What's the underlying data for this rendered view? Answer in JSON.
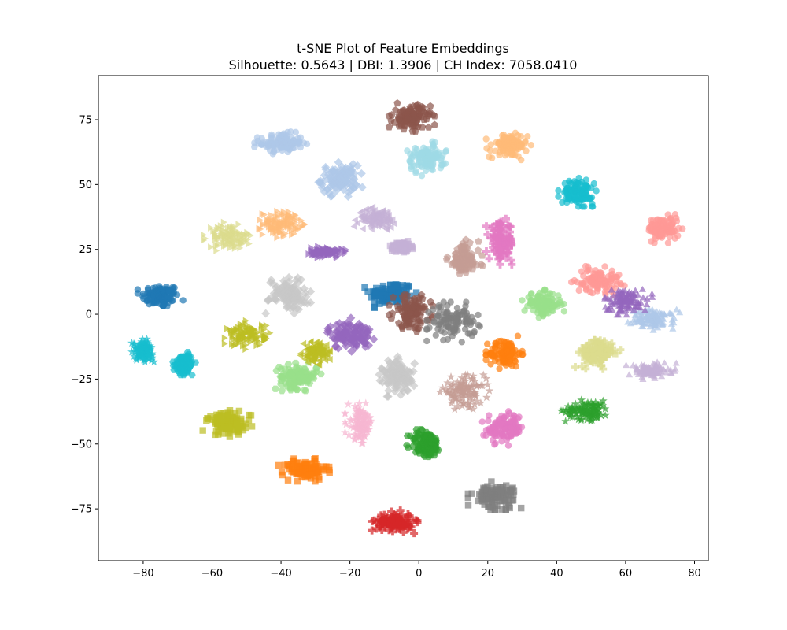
{
  "chart_data": {
    "type": "scatter",
    "title": "t-SNE Plot of Feature Embeddings",
    "subtitle": "Silhouette: 0.5643 | DBI: 1.3906 | CH Index: 7058.0410",
    "xlabel": "",
    "ylabel": "",
    "xlim": [
      -93,
      84
    ],
    "ylim": [
      -95,
      92
    ],
    "xticks": [
      -80,
      -60,
      -40,
      -20,
      0,
      20,
      40,
      60,
      80
    ],
    "yticks": [
      -75,
      -50,
      -25,
      0,
      25,
      50,
      75
    ],
    "xtick_labels": [
      "−80",
      "−60",
      "−40",
      "−20",
      "0",
      "20",
      "40",
      "60",
      "80"
    ],
    "ytick_labels": [
      "−75",
      "−50",
      "−25",
      "0",
      "25",
      "50",
      "75"
    ],
    "grid": false,
    "legend": "none",
    "marker_alpha": 0.7,
    "clusters": [
      {
        "cx": -75,
        "cy": 7,
        "rx": 6,
        "ry": 5,
        "color": "#1f77b4",
        "marker": "circle"
      },
      {
        "cx": -8,
        "cy": 8,
        "rx": 7,
        "ry": 5,
        "color": "#1f77b4",
        "marker": "square"
      },
      {
        "cx": -40,
        "cy": 66,
        "rx": 7,
        "ry": 4,
        "color": "#aec7e8",
        "marker": "circle"
      },
      {
        "cx": -23,
        "cy": 52,
        "rx": 6,
        "ry": 6,
        "color": "#aec7e8",
        "marker": "diamond"
      },
      {
        "cx": 68,
        "cy": -2,
        "rx": 7,
        "ry": 4,
        "color": "#aec7e8",
        "marker": "triangle"
      },
      {
        "cx": -40,
        "cy": 35,
        "rx": 6,
        "ry": 5,
        "color": "#ffbb78",
        "marker": "triangle-right"
      },
      {
        "cx": 26,
        "cy": 65,
        "rx": 6,
        "ry": 5,
        "color": "#ffbb78",
        "marker": "circle"
      },
      {
        "cx": -33,
        "cy": -60,
        "rx": 7,
        "ry": 4,
        "color": "#ff7f0e",
        "marker": "square"
      },
      {
        "cx": 25,
        "cy": -15,
        "rx": 5,
        "ry": 6,
        "color": "#ff7f0e",
        "marker": "circle"
      },
      {
        "cx": 2,
        "cy": -50,
        "rx": 5,
        "ry": 6,
        "color": "#2ca02c",
        "marker": "hexagon"
      },
      {
        "cx": 49,
        "cy": -37,
        "rx": 7,
        "ry": 4,
        "color": "#2ca02c",
        "marker": "star"
      },
      {
        "cx": -35,
        "cy": -24,
        "rx": 6,
        "ry": 5,
        "color": "#98df8a",
        "marker": "hexagon"
      },
      {
        "cx": 36,
        "cy": 4,
        "rx": 6,
        "ry": 5,
        "color": "#98df8a",
        "marker": "circle"
      },
      {
        "cx": -7,
        "cy": -80,
        "rx": 6,
        "ry": 4,
        "color": "#d62728",
        "marker": "plus"
      },
      {
        "cx": 71,
        "cy": 33,
        "rx": 5,
        "ry": 5,
        "color": "#ff9896",
        "marker": "circle"
      },
      {
        "cx": 52,
        "cy": 13,
        "rx": 7,
        "ry": 5,
        "color": "#ff9896",
        "marker": "circle"
      },
      {
        "cx": -20,
        "cy": -8,
        "rx": 7,
        "ry": 6,
        "color": "#9467bd",
        "marker": "diamond"
      },
      {
        "cx": -27,
        "cy": 24,
        "rx": 5,
        "ry": 2,
        "color": "#9467bd",
        "marker": "triangle-right"
      },
      {
        "cx": 60,
        "cy": 5,
        "rx": 7,
        "ry": 5,
        "color": "#9467bd",
        "marker": "triangle"
      },
      {
        "cx": -12,
        "cy": 37,
        "rx": 6,
        "ry": 4,
        "color": "#c5b0d5",
        "marker": "triangle-left"
      },
      {
        "cx": -5,
        "cy": 26,
        "rx": 3,
        "ry": 2,
        "color": "#c5b0d5",
        "marker": "square"
      },
      {
        "cx": 67,
        "cy": -22,
        "rx": 7,
        "ry": 3,
        "color": "#c5b0d5",
        "marker": "triangle"
      },
      {
        "cx": -2,
        "cy": 76,
        "rx": 6,
        "ry": 5,
        "color": "#8c564b",
        "marker": "pentagon"
      },
      {
        "cx": -2,
        "cy": 1,
        "rx": 6,
        "ry": 7,
        "color": "#8c564b",
        "marker": "pentagon"
      },
      {
        "cx": 13,
        "cy": 21,
        "rx": 5,
        "ry": 7,
        "color": "#c49c94",
        "marker": "pentagon"
      },
      {
        "cx": 13,
        "cy": -30,
        "rx": 7,
        "ry": 6,
        "color": "#c49c94",
        "marker": "star"
      },
      {
        "cx": 24,
        "cy": 28,
        "rx": 4,
        "ry": 8,
        "color": "#e377c2",
        "marker": "plus"
      },
      {
        "cx": 25,
        "cy": -44,
        "rx": 6,
        "ry": 6,
        "color": "#e377c2",
        "marker": "circle"
      },
      {
        "cx": -17,
        "cy": -42,
        "rx": 4,
        "ry": 7,
        "color": "#f7b6d2",
        "marker": "star"
      },
      {
        "cx": 10,
        "cy": -3,
        "rx": 7,
        "ry": 7,
        "color": "#7f7f7f",
        "marker": "circle"
      },
      {
        "cx": 22,
        "cy": -70,
        "rx": 7,
        "ry": 5,
        "color": "#7f7f7f",
        "marker": "square"
      },
      {
        "cx": -38,
        "cy": 8,
        "rx": 6,
        "ry": 7,
        "color": "#c7c7c7",
        "marker": "diamond"
      },
      {
        "cx": -6,
        "cy": -24,
        "rx": 5,
        "ry": 7,
        "color": "#c7c7c7",
        "marker": "diamond"
      },
      {
        "cx": -50,
        "cy": -8,
        "rx": 6,
        "ry": 5,
        "color": "#bcbd22",
        "marker": "triangle-right"
      },
      {
        "cx": -55,
        "cy": -42,
        "rx": 7,
        "ry": 5,
        "color": "#bcbd22",
        "marker": "square"
      },
      {
        "cx": -30,
        "cy": -15,
        "rx": 4,
        "ry": 4,
        "color": "#bcbd22",
        "marker": "triangle-left"
      },
      {
        "cx": -55,
        "cy": 30,
        "rx": 7,
        "ry": 5,
        "color": "#dbdb8d",
        "marker": "triangle-right"
      },
      {
        "cx": 52,
        "cy": -15,
        "rx": 6,
        "ry": 6,
        "color": "#dbdb8d",
        "marker": "plus"
      },
      {
        "cx": -80,
        "cy": -14,
        "rx": 3,
        "ry": 4,
        "color": "#17becf",
        "marker": "star"
      },
      {
        "cx": -68,
        "cy": -19,
        "rx": 3,
        "ry": 4,
        "color": "#17becf",
        "marker": "hexagon"
      },
      {
        "cx": 46,
        "cy": 47,
        "rx": 5,
        "ry": 5,
        "color": "#17becf",
        "marker": "circle"
      },
      {
        "cx": 2,
        "cy": 60,
        "rx": 6,
        "ry": 6,
        "color": "#9edae5",
        "marker": "circle"
      }
    ]
  }
}
